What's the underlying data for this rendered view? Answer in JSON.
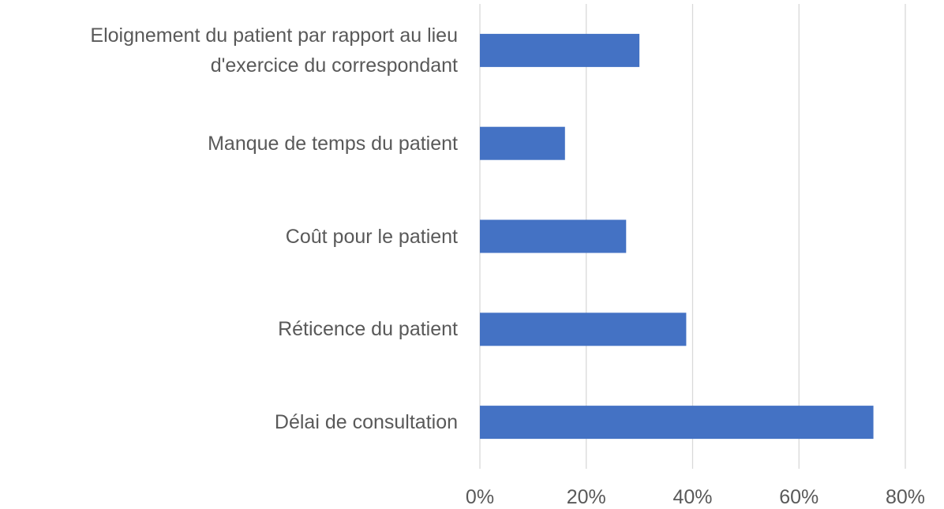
{
  "chart_data": {
    "type": "bar",
    "orientation": "horizontal",
    "categories": [
      "Eloignement du patient par rapport au lieu d'exercice du correspondant",
      "Manque de temps du patient",
      "Coût pour le patient",
      "Réticence du patient",
      "Délai de consultation"
    ],
    "values": [
      30,
      16,
      27.5,
      38.8,
      74
    ],
    "color": "#4472c4",
    "xlim": [
      0,
      80
    ],
    "xticks": [
      {
        "value": 0,
        "label": "0%"
      },
      {
        "value": 20,
        "label": "20%"
      },
      {
        "value": 40,
        "label": "40%"
      },
      {
        "value": 60,
        "label": "60%"
      },
      {
        "value": 80,
        "label": "80%"
      }
    ],
    "grid": true
  }
}
